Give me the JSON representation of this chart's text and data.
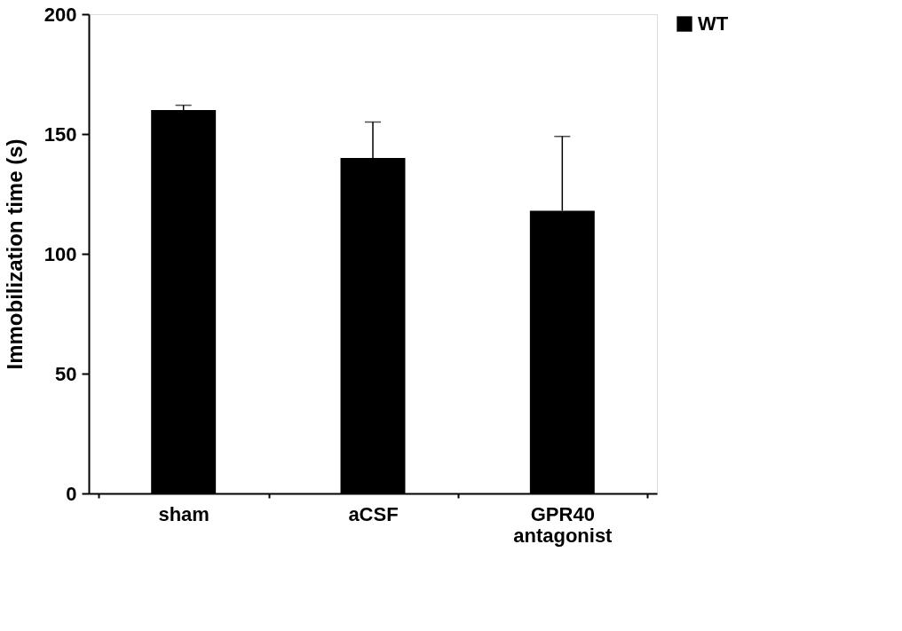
{
  "chart_data": {
    "type": "bar",
    "ylabel": "Immobilization time (s)",
    "categories": [
      "sham",
      "aCSF",
      "GPR40 antagonist"
    ],
    "series": [
      {
        "name": "WT",
        "color": "#000000",
        "values": [
          160,
          140,
          118
        ],
        "errors": [
          [
            160,
            162
          ],
          [
            140,
            155
          ],
          [
            118,
            149
          ]
        ]
      }
    ],
    "ylim": [
      0,
      200
    ],
    "yticks": [
      0,
      50,
      100,
      150,
      200
    ],
    "grid": false,
    "legend": "top right"
  }
}
